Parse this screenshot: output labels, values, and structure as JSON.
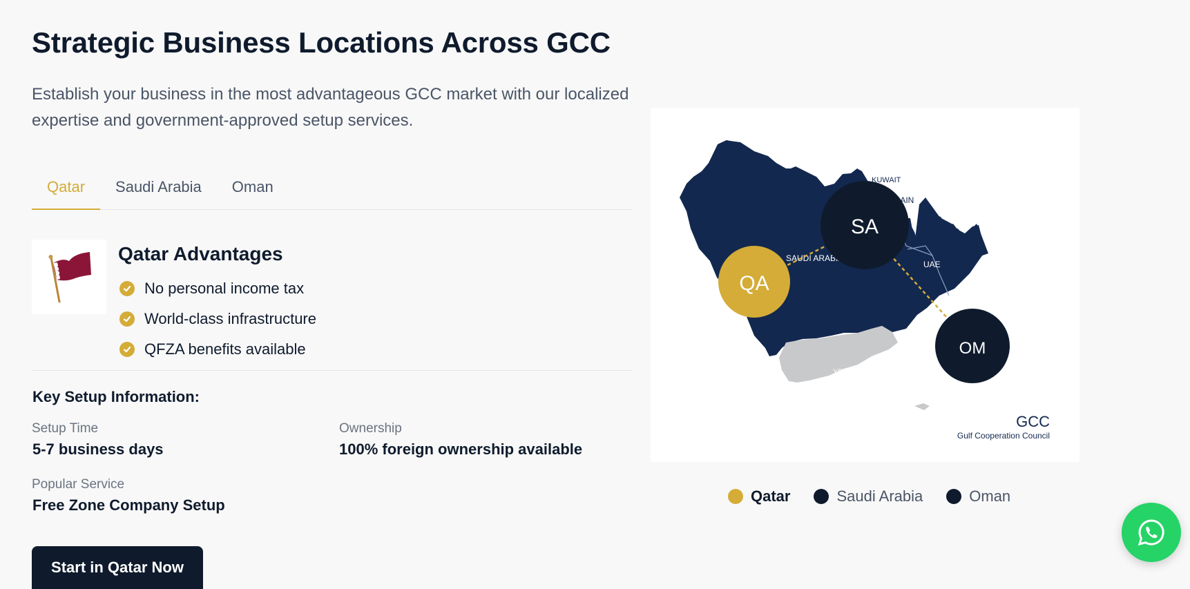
{
  "header": {
    "title": "Strategic Business Locations Across GCC",
    "subtitle": "Establish your business in the most advantageous GCC market with our localized expertise and government-approved setup services."
  },
  "tabs": [
    {
      "label": "Qatar",
      "active": true
    },
    {
      "label": "Saudi Arabia",
      "active": false
    },
    {
      "label": "Oman",
      "active": false
    }
  ],
  "advantages": {
    "title": "Qatar Advantages",
    "flag_icon": "qatar-flag-icon",
    "items": [
      "No personal income tax",
      "World-class infrastructure",
      "QFZA benefits available"
    ]
  },
  "setup_info": {
    "title": "Key Setup Information:",
    "setup_time": {
      "label": "Setup Time",
      "value": "5-7 business days"
    },
    "ownership": {
      "label": "Ownership",
      "value": "100% foreign ownership available"
    },
    "popular_service": {
      "label": "Popular Service",
      "value": "Free Zone Company Setup"
    }
  },
  "cta": {
    "label": "Start in Qatar Now"
  },
  "map": {
    "country_labels": [
      "KUWAIT",
      "BAHRAIN",
      "QATAR",
      "UAE",
      "SAUDI ARABIA",
      "OMAN",
      "YEMEN"
    ],
    "markers": [
      {
        "code": "QA",
        "name": "Qatar",
        "color": "#d4ac37",
        "active": true
      },
      {
        "code": "SA",
        "name": "Saudi Arabia",
        "color": "#0f1b2d",
        "active": false
      },
      {
        "code": "OM",
        "name": "Oman",
        "color": "#0f1b2d",
        "active": false
      }
    ],
    "logo": {
      "title": "GCC",
      "subtitle": "Gulf Cooperation Council"
    }
  },
  "legend": [
    {
      "label": "Qatar",
      "color": "#d4ac37"
    },
    {
      "label": "Saudi Arabia",
      "color": "#0f1b2d"
    },
    {
      "label": "Oman",
      "color": "#0f1b2d"
    }
  ],
  "whatsapp": {
    "icon": "whatsapp-icon",
    "color": "#25d366"
  },
  "colors": {
    "accent": "#d4ac37",
    "navy": "#0f1b2d",
    "map_fill": "#13284f",
    "yemen_fill": "#c8c9cb"
  }
}
